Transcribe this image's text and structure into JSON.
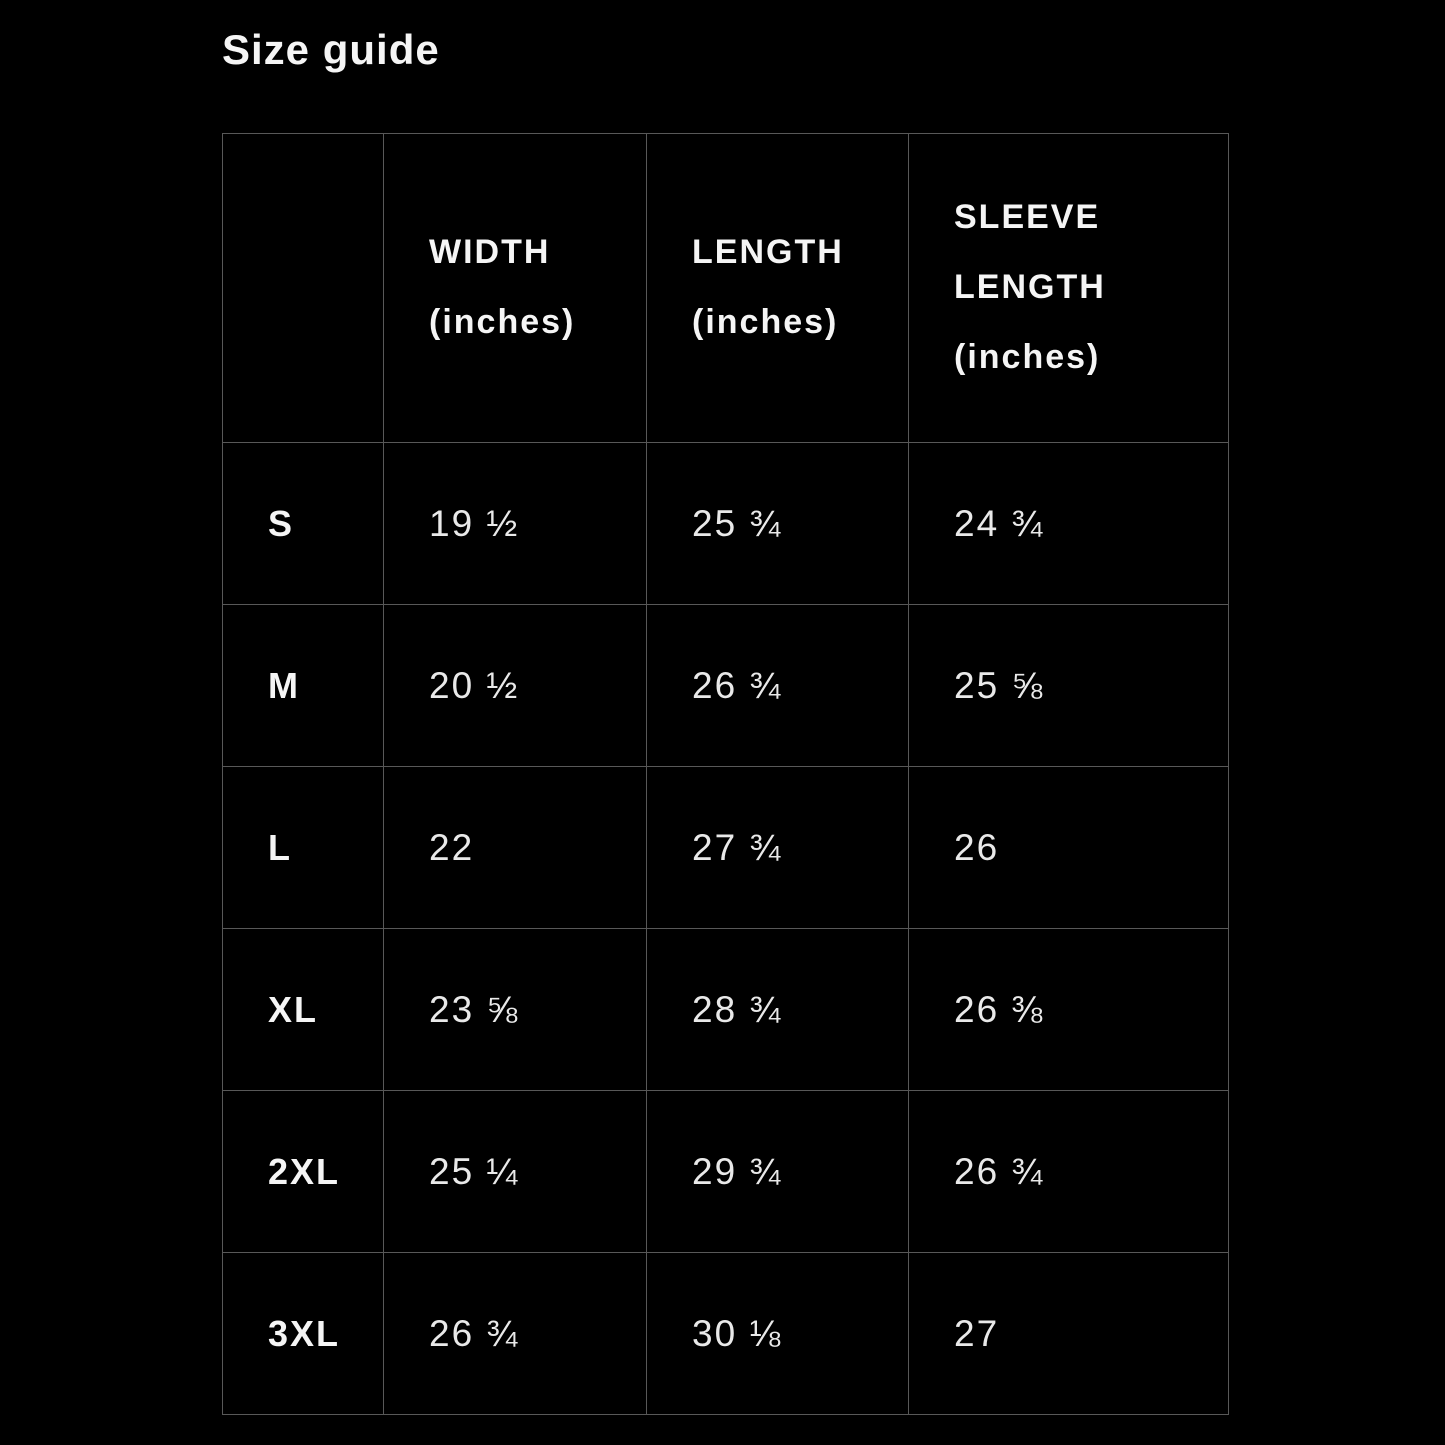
{
  "page": {
    "title": "Size guide",
    "background_color": "#000000",
    "text_color": "#ededed",
    "grid_color": "#585858"
  },
  "table": {
    "headers": [
      {
        "label": "",
        "unit": ""
      },
      {
        "label": "WIDTH",
        "unit": "(inches)"
      },
      {
        "label": "LENGTH",
        "unit": "(inches)"
      },
      {
        "label": "SLEEVE LENGTH",
        "unit": "(inches)"
      }
    ],
    "rows": [
      {
        "size": "S",
        "width": "19 ½",
        "length": "25 ¾",
        "sleeve": "24 ¾"
      },
      {
        "size": "M",
        "width": "20 ½",
        "length": "26 ¾",
        "sleeve": "25 ⅝"
      },
      {
        "size": "L",
        "width": "22",
        "length": "27 ¾",
        "sleeve": "26"
      },
      {
        "size": "XL",
        "width": "23 ⅝",
        "length": "28 ¾",
        "sleeve": "26 ⅜"
      },
      {
        "size": "2XL",
        "width": "25 ¼",
        "length": "29 ¾",
        "sleeve": "26 ¾"
      },
      {
        "size": "3XL",
        "width": "26 ¾",
        "length": "30 ⅛",
        "sleeve": "27"
      }
    ]
  },
  "chart_data": {
    "type": "table",
    "title": "Size guide",
    "columns": [
      "",
      "WIDTH (inches)",
      "LENGTH (inches)",
      "SLEEVE LENGTH (inches)"
    ],
    "rows": [
      [
        "S",
        "19 ½",
        "25 ¾",
        "24 ¾"
      ],
      [
        "M",
        "20 ½",
        "26 ¾",
        "25 ⅝"
      ],
      [
        "L",
        "22",
        "27 ¾",
        "26"
      ],
      [
        "XL",
        "23 ⅝",
        "28 ¾",
        "26 ⅜"
      ],
      [
        "2XL",
        "25 ¼",
        "29 ¾",
        "26 ¾"
      ],
      [
        "3XL",
        "26 ¾",
        "30 ⅛",
        "27"
      ]
    ]
  }
}
